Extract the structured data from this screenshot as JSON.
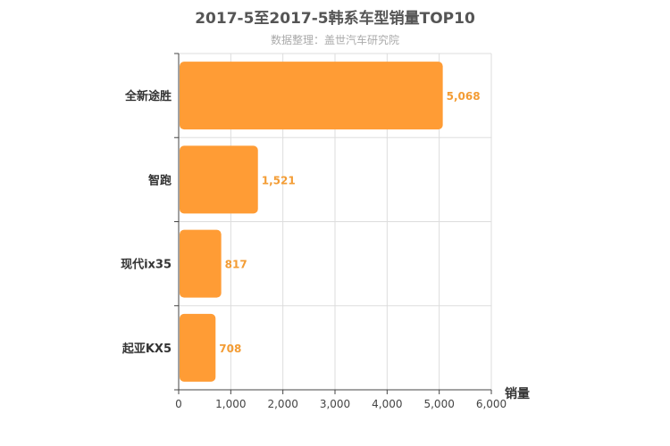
{
  "chart_data": {
    "type": "bar",
    "orientation": "horizontal",
    "title": "2017-5至2017-5韩系车型销量TOP10",
    "subtitle": "数据整理：盖世汽车研究院",
    "categories": [
      "全新途胜",
      "智跑",
      "现代ix35",
      "起亚KX5"
    ],
    "values": [
      5068,
      1521,
      817,
      708
    ],
    "value_labels": [
      "5,068",
      "1,521",
      "817",
      "708"
    ],
    "xlabel": "销量",
    "ylabel": "",
    "xlim": [
      0,
      6000
    ],
    "x_ticks": [
      0,
      1000,
      2000,
      3000,
      4000,
      5000,
      6000
    ],
    "x_tick_labels": [
      "0",
      "1,000",
      "2,000",
      "3,000",
      "4,000",
      "5,000",
      "6,000"
    ],
    "grid": true,
    "bar_color": "#ff9c35",
    "label_color": "#f39c34"
  }
}
